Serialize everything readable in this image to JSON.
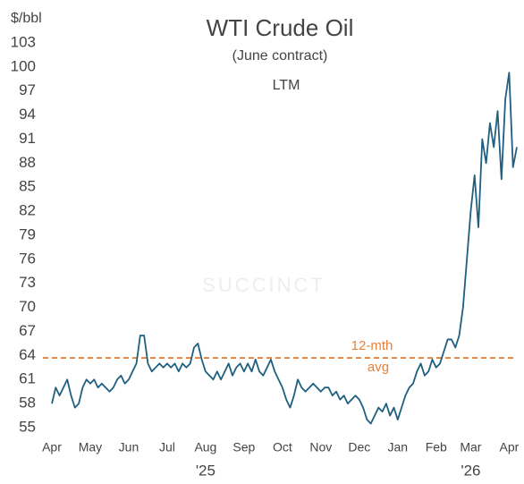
{
  "chart_data": {
    "type": "line",
    "title": "WTI Crude Oil",
    "subtitle": "(June contract)",
    "period": "LTM",
    "y_label": "$/bbl",
    "watermark": "SUCCINCT",
    "color": "#1f5f80",
    "categories": [
      "Apr",
      null,
      null,
      null,
      null,
      null,
      null,
      null,
      null,
      null,
      "May",
      null,
      null,
      null,
      null,
      null,
      null,
      null,
      null,
      null,
      "Jun",
      null,
      null,
      null,
      null,
      null,
      null,
      null,
      null,
      null,
      "Jul",
      null,
      null,
      null,
      null,
      null,
      null,
      null,
      null,
      null,
      "Aug",
      null,
      null,
      null,
      null,
      null,
      null,
      null,
      null,
      null,
      "Sep",
      null,
      null,
      null,
      null,
      null,
      null,
      null,
      null,
      null,
      "Oct",
      null,
      null,
      null,
      null,
      null,
      null,
      null,
      null,
      null,
      "Nov",
      null,
      null,
      null,
      null,
      null,
      null,
      null,
      null,
      null,
      "Dec",
      null,
      null,
      null,
      null,
      null,
      null,
      null,
      null,
      null,
      "Jan",
      null,
      null,
      null,
      null,
      null,
      null,
      null,
      null,
      null,
      "Feb",
      null,
      null,
      null,
      null,
      null,
      null,
      null,
      null,
      "Mar",
      null,
      null,
      null,
      null,
      null,
      null,
      null,
      null,
      null,
      "Apr",
      null,
      null
    ],
    "year_labels": [
      null,
      null,
      null,
      null,
      null,
      null,
      null,
      null,
      null,
      null,
      null,
      null,
      null,
      null,
      null,
      null,
      null,
      null,
      null,
      null,
      null,
      null,
      null,
      null,
      null,
      null,
      null,
      null,
      null,
      null,
      null,
      null,
      null,
      null,
      null,
      null,
      null,
      null,
      null,
      null,
      "'25",
      null,
      null,
      null,
      null,
      null,
      null,
      null,
      null,
      null,
      null,
      null,
      null,
      null,
      null,
      null,
      null,
      null,
      null,
      null,
      null,
      null,
      null,
      null,
      null,
      null,
      null,
      null,
      null,
      null,
      null,
      null,
      null,
      null,
      null,
      null,
      null,
      null,
      null,
      null,
      null,
      null,
      null,
      null,
      null,
      null,
      null,
      null,
      null,
      null,
      null,
      null,
      null,
      null,
      null,
      null,
      null,
      null,
      null,
      null,
      null,
      null,
      null,
      null,
      null,
      null,
      null,
      null,
      null,
      "'26",
      null,
      null,
      null,
      null,
      null,
      null,
      null,
      null,
      null,
      null,
      null,
      null
    ],
    "values": [
      58,
      60,
      59,
      60,
      61,
      59,
      57.5,
      58,
      60,
      61,
      60.5,
      61,
      60,
      60.5,
      60,
      59.5,
      60,
      61,
      61.5,
      60.5,
      61,
      62,
      63,
      66.5,
      66.5,
      63,
      62,
      62.5,
      63,
      62.5,
      63,
      62.5,
      63,
      62,
      63,
      62.5,
      63,
      65,
      65.5,
      63.5,
      62,
      61.5,
      61,
      62,
      61,
      62,
      63,
      61.5,
      62.5,
      63,
      62,
      63,
      62,
      63.5,
      62,
      61.5,
      62.5,
      63.5,
      62,
      61,
      60,
      58.5,
      57.5,
      59,
      61,
      60,
      59.5,
      60,
      60.5,
      60,
      59.5,
      60,
      60,
      59,
      59.5,
      58.5,
      59,
      58,
      58.5,
      59,
      58.5,
      57.5,
      56,
      55.5,
      56.5,
      57.5,
      57,
      58,
      56.5,
      57.5,
      56,
      57.5,
      59,
      60,
      60.5,
      62,
      63,
      61.5,
      62,
      63.5,
      62.5,
      63,
      64.5,
      66,
      66,
      65,
      66.5,
      70,
      76,
      82,
      86.5,
      80,
      91,
      88,
      93,
      90,
      94.5,
      86,
      96,
      99.3,
      87.5,
      90
    ],
    "ylim": [
      55,
      103
    ],
    "yticks": [
      55,
      58,
      61,
      64,
      67,
      70,
      73,
      76,
      79,
      82,
      85,
      88,
      91,
      94,
      97,
      100,
      103
    ],
    "reference_line": {
      "value": 63.7,
      "label": [
        "12-mth",
        "avg"
      ],
      "color": "#e8803a"
    },
    "grid": false
  }
}
